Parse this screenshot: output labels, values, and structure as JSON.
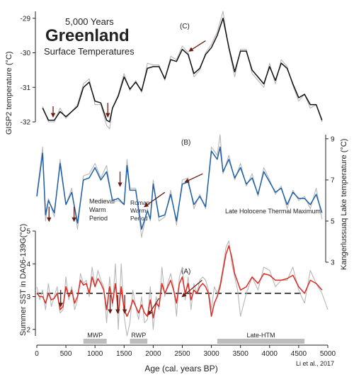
{
  "figure": {
    "years_label": "5,000 Years",
    "main_title": "Greenland",
    "subtitle": "Surface Temperatures",
    "credit": "Li et al., 2017"
  },
  "colors": {
    "raw": "#b7b7b7",
    "gisp2": "#111111",
    "lake": "#1f5fa8",
    "sst": "#dd2a22",
    "arrow": "#6b1d12",
    "period_bar": "#bdbdbd",
    "dashed_line": "#111111"
  },
  "chart_data": {
    "type": "line",
    "xlabel": "Age (cal. years BP)",
    "xlim": [
      0,
      5000
    ],
    "x_ticks": [
      "0",
      "500",
      "1000",
      "1500",
      "2000",
      "2500",
      "3000",
      "3500",
      "4000",
      "4500",
      "5000"
    ],
    "panels": [
      {
        "label": "(C)",
        "ylabel": "GISP2 temperature (°C)",
        "ylim": [
          -32,
          -28.8
        ],
        "y_ticks": [
          "-29",
          "-30",
          "-31",
          "-32"
        ],
        "axis_side": "left",
        "series": [
          {
            "style": "raw",
            "x": [
              100,
              200,
              300,
              400,
              500,
              600,
              700,
              800,
              900,
              1000,
              1100,
              1200,
              1250,
              1300,
              1400,
              1500,
              1600,
              1700,
              1800,
              1900,
              2000,
              2100,
              2200,
              2300,
              2400,
              2500,
              2600,
              2700,
              2800,
              2900,
              3000,
              3100,
              3200,
              3300,
              3400,
              3500,
              3600,
              3700,
              3800,
              3900,
              4000,
              4100,
              4200,
              4300,
              4400,
              4500,
              4600,
              4700,
              4800,
              4900
            ],
            "y": [
              -31.55,
              -32.0,
              -32.0,
              -31.6,
              -31.9,
              -31.7,
              -31.5,
              -30.9,
              -30.75,
              -31.5,
              -31.5,
              -32.1,
              -32.2,
              -31.6,
              -31.2,
              -30.6,
              -31.1,
              -30.8,
              -31.15,
              -30.3,
              -30.35,
              -30.35,
              -30.8,
              -30.1,
              -30.2,
              -29.8,
              -30.0,
              -30.7,
              -30.5,
              -30.0,
              -29.75,
              -29.4,
              -28.8,
              -29.9,
              -30.7,
              -29.9,
              -29.9,
              -30.6,
              -30.8,
              -31.0,
              -30.3,
              -30.9,
              -30.2,
              -30.4,
              -30.95,
              -31.4,
              -31.2,
              -31.6,
              -31.5,
              -32.0
            ]
          },
          {
            "style": "main",
            "x": [
              100,
              200,
              300,
              400,
              500,
              600,
              700,
              800,
              900,
              1000,
              1100,
              1200,
              1250,
              1300,
              1400,
              1500,
              1600,
              1700,
              1800,
              1900,
              2000,
              2100,
              2200,
              2300,
              2400,
              2500,
              2600,
              2700,
              2800,
              2900,
              3000,
              3100,
              3200,
              3300,
              3400,
              3500,
              3600,
              3700,
              3800,
              3900,
              4000,
              4100,
              4200,
              4300,
              4400,
              4500,
              4600,
              4700,
              4800,
              4900
            ],
            "y": [
              -31.6,
              -31.95,
              -31.95,
              -31.7,
              -31.85,
              -31.7,
              -31.55,
              -31.0,
              -30.85,
              -31.4,
              -31.45,
              -31.95,
              -32.0,
              -31.6,
              -31.25,
              -30.7,
              -31.05,
              -30.85,
              -31.1,
              -30.45,
              -30.4,
              -30.4,
              -30.75,
              -30.2,
              -30.25,
              -29.9,
              -30.05,
              -30.6,
              -30.45,
              -30.05,
              -29.85,
              -29.5,
              -29.0,
              -29.85,
              -30.55,
              -29.95,
              -29.95,
              -30.5,
              -30.7,
              -30.9,
              -30.4,
              -30.8,
              -30.3,
              -30.45,
              -30.9,
              -31.3,
              -31.2,
              -31.5,
              -31.5,
              -31.95
            ]
          }
        ],
        "arrows": [
          [
            280,
            -31.55,
            280,
            -31.85
          ],
          [
            1220,
            -31.45,
            1220,
            -31.85
          ],
          [
            2900,
            -29.65,
            2620,
            -29.95
          ]
        ]
      },
      {
        "label": "(B)",
        "ylabel": "Kangerlussuaq Lake temperature (°C)",
        "ylim": [
          3,
          9.2
        ],
        "y_ticks": [
          "3",
          "5",
          "7",
          "9"
        ],
        "axis_side": "right",
        "series": [
          {
            "style": "raw",
            "x": [
              0,
              100,
              150,
              200,
              300,
              400,
              500,
              600,
              700,
              800,
              900,
              1000,
              1100,
              1200,
              1300,
              1400,
              1500,
              1550,
              1600,
              1700,
              1800,
              1900,
              1950,
              2000,
              2100,
              2200,
              2300,
              2400,
              2500,
              2600,
              2700,
              2800,
              2900,
              3000,
              3100,
              3150,
              3200,
              3300,
              3400,
              3500,
              3600,
              3700,
              3800,
              3900,
              4000,
              4100,
              4200,
              4300,
              4400,
              4500,
              4600,
              4700,
              4800,
              4900
            ],
            "y": [
              6.3,
              8.6,
              5.0,
              6.1,
              5.2,
              8.0,
              5.8,
              6.6,
              4.6,
              7.2,
              7.3,
              7.8,
              7.1,
              7.7,
              5.9,
              6.0,
              5.8,
              8.0,
              6.6,
              6.6,
              4.2,
              5.6,
              5.0,
              7.0,
              5.0,
              5.2,
              6.5,
              4.8,
              7.0,
              7.1,
              5.6,
              6.3,
              5.6,
              8.6,
              8.2,
              9.2,
              7.3,
              8.2,
              7.0,
              7.8,
              6.7,
              7.3,
              6.2,
              7.6,
              7.0,
              6.3,
              6.7,
              5.6,
              6.5,
              6.0,
              6.2,
              5.6,
              6.6,
              5.1
            ]
          },
          {
            "style": "main",
            "x": [
              0,
              100,
              150,
              200,
              300,
              400,
              500,
              600,
              700,
              800,
              900,
              1000,
              1100,
              1200,
              1300,
              1400,
              1500,
              1550,
              1600,
              1700,
              1800,
              1900,
              1950,
              2000,
              2100,
              2200,
              2300,
              2400,
              2500,
              2600,
              2700,
              2800,
              2900,
              3000,
              3100,
              3150,
              3200,
              3300,
              3400,
              3500,
              3600,
              3700,
              3800,
              3900,
              4000,
              4100,
              4200,
              4300,
              4400,
              4500,
              4600,
              4700,
              4800,
              4900
            ],
            "y": [
              6.2,
              8.3,
              5.3,
              6.0,
              5.4,
              7.8,
              5.8,
              6.4,
              4.9,
              7.0,
              7.1,
              7.6,
              7.0,
              7.4,
              6.0,
              6.1,
              5.8,
              7.7,
              6.5,
              6.5,
              4.6,
              5.5,
              5.1,
              6.8,
              5.2,
              5.3,
              6.3,
              5.0,
              6.8,
              6.9,
              5.8,
              6.2,
              5.7,
              8.4,
              8.0,
              8.6,
              7.4,
              8.0,
              7.1,
              7.6,
              6.8,
              7.1,
              6.3,
              7.4,
              6.9,
              6.4,
              6.6,
              5.8,
              6.4,
              6.1,
              6.1,
              5.8,
              6.3,
              5.4
            ]
          }
        ],
        "arrows": [
          [
            210,
            5.7,
            210,
            5.0
          ],
          [
            640,
            5.7,
            640,
            5.0
          ],
          [
            1430,
            7.4,
            1430,
            6.7
          ],
          [
            2200,
            6.4,
            1850,
            5.7
          ],
          [
            2850,
            7.3,
            2550,
            6.9
          ]
        ]
      },
      {
        "label": "(A)",
        "ylabel": "Summer SST in DA06-139G(°C)",
        "ylim": [
          1.8,
          5.0
        ],
        "y_ticks": [
          "2",
          "3",
          "4",
          "5"
        ],
        "axis_side": "left",
        "series": [
          {
            "style": "raw",
            "x": [
              0,
              50,
              100,
              150,
              200,
              250,
              300,
              350,
              400,
              450,
              500,
              550,
              600,
              650,
              700,
              750,
              800,
              850,
              900,
              950,
              1000,
              1050,
              1100,
              1150,
              1200,
              1250,
              1300,
              1350,
              1400,
              1450,
              1500,
              1550,
              1600,
              1650,
              1700,
              1750,
              1800,
              1850,
              1900,
              1950,
              2000,
              2050,
              2100,
              2150,
              2200,
              2250,
              2300,
              2350,
              2400,
              2450,
              2500,
              2550,
              2600,
              2650,
              2700,
              2750,
              2800,
              2850,
              2900,
              2950,
              3000,
              3050,
              3100,
              3150,
              3200,
              3250,
              3300,
              3350,
              3400,
              3450,
              3500,
              3600,
              3700,
              3800,
              3900,
              4000,
              4100,
              4200,
              4300,
              4400,
              4500,
              4600,
              4700,
              4800,
              4900,
              5000
            ],
            "y": [
              3.3,
              2.9,
              3.2,
              2.6,
              3.4,
              2.7,
              3.0,
              3.3,
              2.5,
              2.6,
              3.6,
              2.9,
              3.3,
              2.6,
              2.9,
              3.7,
              3.4,
              3.5,
              3.0,
              3.9,
              3.3,
              3.8,
              3.5,
              3.3,
              2.2,
              3.6,
              2.7,
              4.0,
              2.0,
              4.0,
              2.4,
              1.8,
              2.2,
              3.2,
              2.7,
              2.3,
              3.0,
              2.2,
              2.3,
              3.3,
              2.0,
              3.0,
              2.6,
              3.9,
              3.0,
              3.4,
              3.7,
              3.3,
              2.4,
              3.6,
              3.9,
              2.9,
              3.6,
              2.6,
              3.4,
              3.1,
              3.5,
              3.6,
              3.5,
              3.2,
              2.6,
              3.3,
              3.1,
              3.4,
              3.9,
              4.5,
              4.7,
              4.0,
              3.6,
              3.2,
              2.4,
              3.1,
              3.6,
              3.2,
              3.9,
              3.8,
              3.3,
              3.5,
              3.5,
              3.9,
              3.2,
              2.8,
              3.8,
              3.4,
              3.1,
              2.6
            ]
          },
          {
            "style": "main",
            "x": [
              0,
              50,
              100,
              150,
              200,
              250,
              300,
              350,
              400,
              450,
              500,
              550,
              600,
              650,
              700,
              750,
              800,
              850,
              900,
              950,
              1000,
              1050,
              1100,
              1150,
              1200,
              1250,
              1300,
              1350,
              1400,
              1450,
              1500,
              1550,
              1600,
              1650,
              1700,
              1750,
              1800,
              1850,
              1900,
              1950,
              2000,
              2050,
              2100,
              2150,
              2200,
              2250,
              2300,
              2350,
              2400,
              2450,
              2500,
              2550,
              2600,
              2650,
              2700,
              2750,
              2800,
              2850,
              2900,
              2950,
              3000,
              3050,
              3100,
              3150,
              3200,
              3250,
              3300,
              3350,
              3400,
              3450,
              3500,
              3600,
              3700,
              3800,
              3900,
              4000,
              4100,
              4200,
              4300,
              4400,
              4500,
              4600,
              4700,
              4800,
              4900
            ],
            "y": [
              3.1,
              3.0,
              3.0,
              2.8,
              3.1,
              2.9,
              2.95,
              3.1,
              2.6,
              2.7,
              3.3,
              3.0,
              3.2,
              2.8,
              3.0,
              3.5,
              3.35,
              3.4,
              3.1,
              3.6,
              3.3,
              3.55,
              3.4,
              3.2,
              2.6,
              3.3,
              2.8,
              3.4,
              2.5,
              3.3,
              2.6,
              2.4,
              2.6,
              2.9,
              2.7,
              2.5,
              2.75,
              2.5,
              2.4,
              2.9,
              2.35,
              2.8,
              2.7,
              3.4,
              3.1,
              3.3,
              3.5,
              3.2,
              2.8,
              3.4,
              3.6,
              3.1,
              3.4,
              2.9,
              3.2,
              3.1,
              3.3,
              3.4,
              3.3,
              3.1,
              2.4,
              2.8,
              3.0,
              3.3,
              3.8,
              4.3,
              4.55,
              4.2,
              3.7,
              3.45,
              3.2,
              3.3,
              3.6,
              3.4,
              3.7,
              3.65,
              3.5,
              3.5,
              3.55,
              3.65,
              3.3,
              3.1,
              3.5,
              3.4,
              3.2
            ]
          }
        ],
        "dashed_y": 3.1,
        "arrows": [
          [
            410,
            3.2,
            410,
            2.7
          ],
          [
            1260,
            3.05,
            1260,
            2.5
          ],
          [
            1390,
            3.05,
            1390,
            2.5
          ],
          [
            1510,
            3.05,
            1510,
            2.5
          ],
          [
            2100,
            2.95,
            1920,
            2.45
          ],
          [
            2840,
            3.5,
            2500,
            3.0
          ]
        ]
      }
    ],
    "periods": [
      {
        "name": "MWP",
        "from": 800,
        "to": 1200
      },
      {
        "name": "RWP",
        "from": 1600,
        "to": 1900
      },
      {
        "name": "Late-HTM",
        "from": 3100,
        "to": 4600
      }
    ],
    "annotations": [
      "Medieval Warm Period",
      "Roman Warm Period",
      "Late Holocene Thermal Maximum"
    ]
  }
}
